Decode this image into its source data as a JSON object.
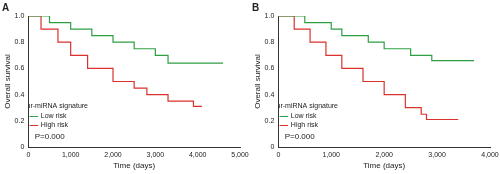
{
  "chart_data": [
    {
      "type": "line",
      "title": "A",
      "line_style": "step",
      "grid": false,
      "legend": "top-right",
      "legend_title": "Four-miRNA signature",
      "x_label": "Time (days)",
      "y_label": "Overall survival",
      "xlim": [
        0,
        5000
      ],
      "xticks": [
        0,
        {
          "value": 1000,
          "label": "1,000"
        },
        {
          "value": 2000,
          "label": "2,000"
        },
        {
          "value": 3000,
          "label": "3,000"
        },
        {
          "value": 4000,
          "label": "4,000"
        },
        {
          "value": 5000,
          "label": "5,000"
        }
      ],
      "ylim": [
        0,
        1
      ],
      "yticks": [
        0,
        0.2,
        0.4,
        0.6,
        0.8,
        {
          "value": 1,
          "label": "1.0"
        }
      ],
      "annotations": [
        {
          "text": "P=0.000",
          "x": 150,
          "y": 0.08
        }
      ],
      "series": [
        {
          "name": "Low risk",
          "color": "#2e9e44",
          "x": [
            0,
            500,
            1000,
            1500,
            2000,
            2500,
            3000,
            3300,
            4600
          ],
          "values": [
            1.0,
            0.95,
            0.9,
            0.85,
            0.8,
            0.75,
            0.7,
            0.64,
            0.64
          ]
        },
        {
          "name": "High risk",
          "color": "#d9312b",
          "x": [
            0,
            300,
            700,
            1000,
            1400,
            2000,
            2500,
            2800,
            3300,
            3900,
            4100
          ],
          "values": [
            1.0,
            0.9,
            0.8,
            0.7,
            0.6,
            0.5,
            0.45,
            0.4,
            0.35,
            0.31,
            0.31
          ]
        }
      ]
    },
    {
      "type": "line",
      "title": "B",
      "line_style": "step",
      "grid": false,
      "legend": "top-right",
      "legend_title": "Four-miRNA signature",
      "x_label": "Time (days)",
      "y_label": "Overall survival",
      "xlim": [
        0,
        4000
      ],
      "xticks": [
        0,
        {
          "value": 1000,
          "label": "1,000"
        },
        {
          "value": 2000,
          "label": "2,000"
        },
        {
          "value": 3000,
          "label": "3,000"
        },
        {
          "value": 4000,
          "label": "4,000"
        }
      ],
      "ylim": [
        0,
        1
      ],
      "yticks": [
        0,
        0.2,
        0.4,
        0.6,
        0.8,
        {
          "value": 1,
          "label": "1.0"
        }
      ],
      "annotations": [
        {
          "text": "P=0.000",
          "x": 120,
          "y": 0.08
        }
      ],
      "series": [
        {
          "name": "Low risk",
          "color": "#2e9e44",
          "x": [
            0,
            500,
            1000,
            1200,
            1700,
            2000,
            2500,
            2900,
            3700
          ],
          "values": [
            1.0,
            0.95,
            0.9,
            0.85,
            0.8,
            0.75,
            0.7,
            0.66,
            0.66
          ]
        },
        {
          "name": "High risk",
          "color": "#d9312b",
          "x": [
            0,
            300,
            600,
            900,
            1200,
            1600,
            2000,
            2400,
            2700,
            2800,
            3400
          ],
          "values": [
            1.0,
            0.9,
            0.8,
            0.7,
            0.6,
            0.5,
            0.4,
            0.3,
            0.25,
            0.21,
            0.21
          ]
        }
      ]
    }
  ]
}
